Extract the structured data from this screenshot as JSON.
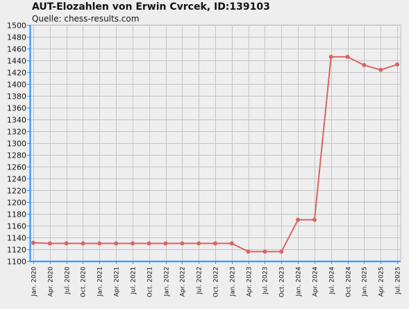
{
  "chart_data": {
    "type": "line",
    "title": "AUT-Elozahlen von Erwin Cvrcek, ID:139103",
    "subtitle": "Quelle: chess-results.com",
    "xlabel": "",
    "ylabel": "",
    "ylim": [
      1100,
      1500
    ],
    "yticks": [
      1100,
      1120,
      1140,
      1160,
      1180,
      1200,
      1220,
      1240,
      1260,
      1280,
      1300,
      1320,
      1340,
      1360,
      1380,
      1400,
      1420,
      1440,
      1460,
      1480,
      1500
    ],
    "grid": true,
    "legend": "none",
    "line_color": "#d96464",
    "axis_color": "#1e90ff",
    "categories": [
      "Jan. 2020",
      "Apr. 2020",
      "Jul. 2020",
      "Oct. 2020",
      "Jan. 2021",
      "Apr. 2021",
      "Jul. 2021",
      "Oct. 2021",
      "Jan. 2022",
      "Apr. 2022",
      "Jul. 2022",
      "Oct. 2022",
      "Jan. 2023",
      "Apr. 2023",
      "Jul. 2023",
      "Oct. 2023",
      "Jan. 2024",
      "Apr. 2024",
      "Jul. 2024",
      "Oct. 2024",
      "Jan. 2025",
      "Apr. 2025",
      "Jul. 2025"
    ],
    "series": [
      {
        "values": [
          1131,
          1130,
          1130,
          1130,
          1130,
          1130,
          1130,
          1130,
          1130,
          1130,
          1130,
          1130,
          1130,
          1116,
          1116,
          1116,
          1170,
          1170,
          1446,
          1446,
          1432,
          1424,
          1433
        ]
      }
    ]
  }
}
